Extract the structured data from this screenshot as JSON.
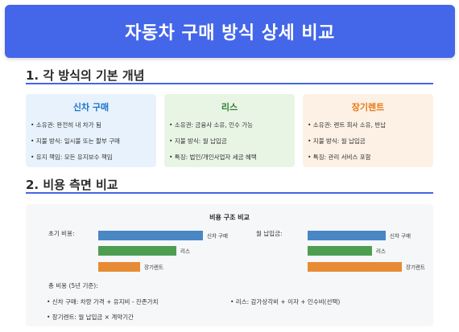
{
  "header": {
    "title": "자동차 구매 방식 상세 비교"
  },
  "section1": {
    "title": "1. 각 방식의 기본 개념"
  },
  "section2": {
    "title": "2. 비용 측면 비교"
  },
  "cards": [
    {
      "title": "신차 구매",
      "items": [
        "• 소유권: 완전히 내 차가 됨",
        "• 지불 방식: 일시불 또는 할부 구매",
        "• 유지 책임: 모든 유지보수 책임"
      ]
    },
    {
      "title": "리스",
      "items": [
        "• 소유권: 금융사 소유, 인수 가능",
        "• 지불 방식: 월 납입금",
        "• 특징: 법인/개인사업자 세금 혜택"
      ]
    },
    {
      "title": "장기렌트",
      "items": [
        "• 소유권: 렌트 회사 소유, 반납",
        "• 지불 방식: 월 납입금",
        "• 특징: 관리 서비스 포함"
      ]
    }
  ],
  "chart_data": {
    "type": "bar",
    "title": "비용 구조 비교",
    "groups": [
      {
        "label": "초기 비용:",
        "categories": [
          "신차 구매",
          "리스",
          "장기렌트"
        ],
        "values": [
          130,
          97,
          52
        ]
      },
      {
        "label": "월 납입금:",
        "categories": [
          "신차 구매",
          "리스",
          "장기렌트"
        ],
        "values": [
          97,
          80,
          117
        ]
      }
    ],
    "colors": [
      "#4a87c5",
      "#4e9e52",
      "#e88b35"
    ]
  },
  "total": {
    "label": "총 비용 (5년 기준):",
    "items": [
      "• 신차 구매: 차량 가격 + 유지비 - 잔존가치",
      "• 리스: 감가상각비 + 이자 + 인수비(선택)",
      "• 장기렌트: 월 납입금 × 계약기간"
    ]
  }
}
